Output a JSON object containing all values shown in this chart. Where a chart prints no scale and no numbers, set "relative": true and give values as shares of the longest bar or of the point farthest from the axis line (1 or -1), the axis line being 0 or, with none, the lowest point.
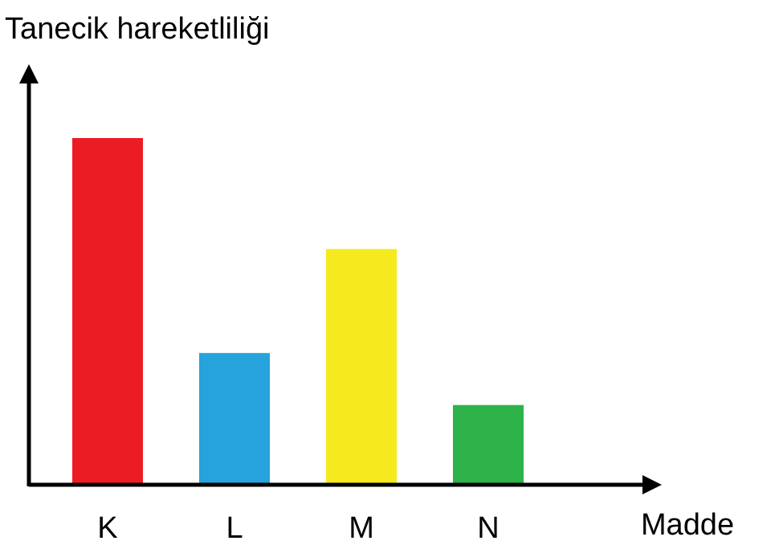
{
  "chart_data": {
    "type": "bar",
    "relative": true,
    "xlabel": "Madde",
    "ylabel": "Tanecik hareketliliği",
    "categories": [
      "K",
      "L",
      "M",
      "N"
    ],
    "values": [
      1,
      0.38,
      0.68,
      0.23
    ],
    "colors": [
      "#ec1c24",
      "#26a3dd",
      "#f5ea1e",
      "#2db34a"
    ]
  }
}
